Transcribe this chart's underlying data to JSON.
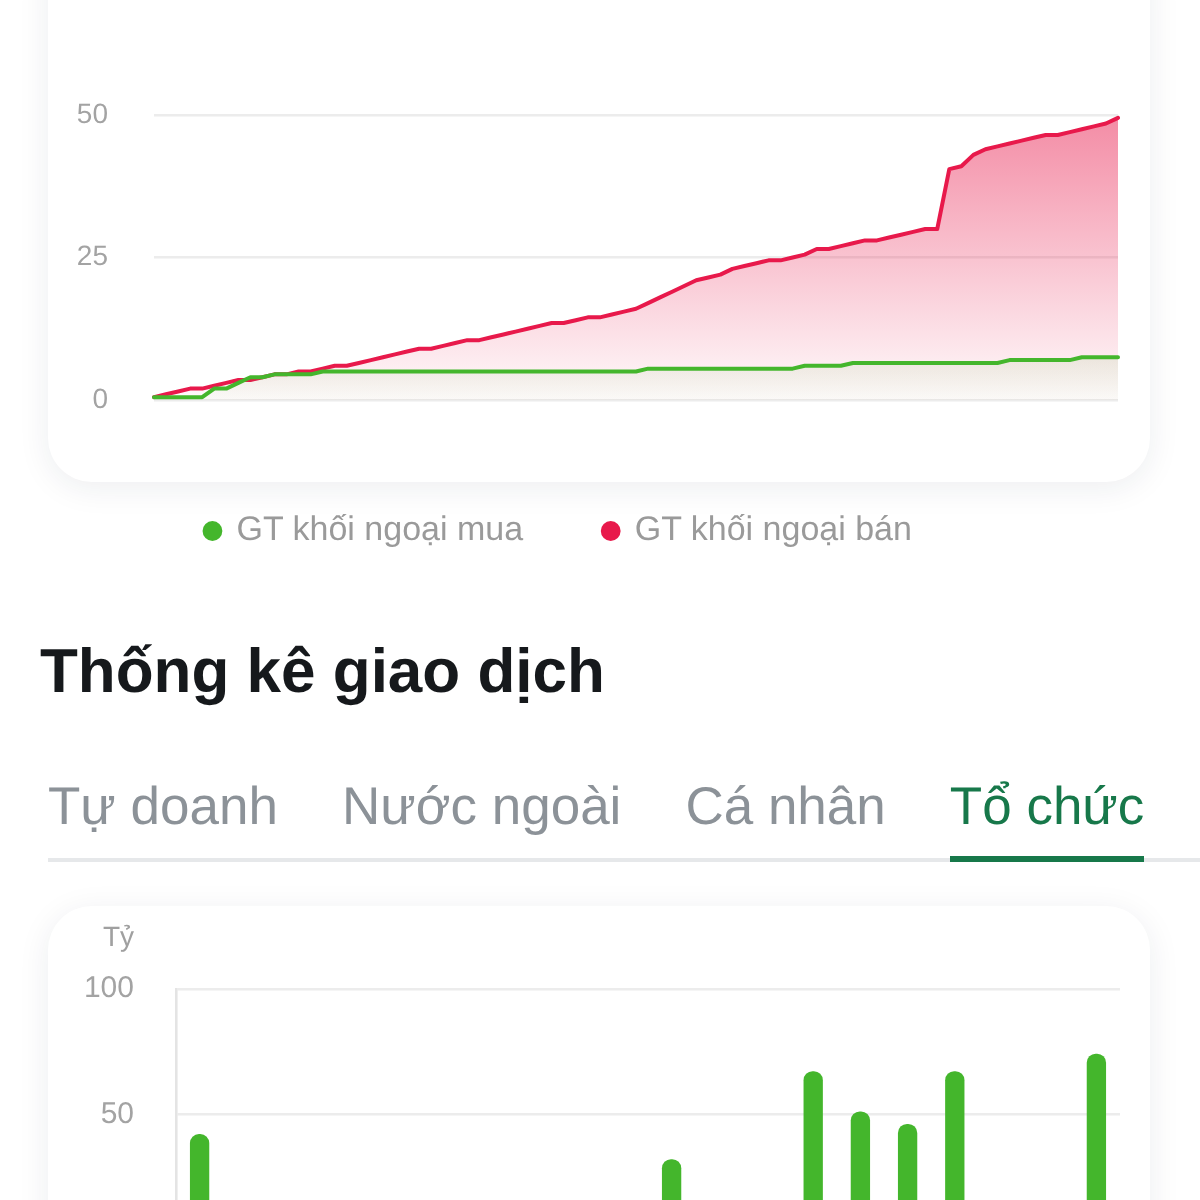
{
  "chart_data": [
    {
      "type": "area",
      "categories": [
        null,
        null,
        null,
        null,
        null,
        null,
        null,
        null,
        null,
        null,
        null,
        null,
        null,
        null,
        null,
        null,
        null,
        null,
        null,
        null,
        null,
        null,
        null,
        null,
        null,
        null,
        null,
        null,
        null,
        null,
        null,
        null,
        null,
        null,
        null,
        null,
        null,
        null,
        null,
        null,
        null,
        null,
        null,
        null,
        null,
        null,
        null,
        null,
        null,
        null,
        null,
        null,
        null,
        null,
        null,
        null,
        null,
        null,
        null,
        null,
        null,
        null,
        null,
        null,
        null,
        null,
        null,
        null,
        null,
        null,
        null,
        null,
        null,
        null,
        null,
        null,
        null,
        null,
        null,
        null,
        null
      ],
      "series": [
        {
          "name": "GT khối ngoại mua",
          "color": "#44b62c",
          "values": [
            0.5,
            0.5,
            0.5,
            0.5,
            0.5,
            2,
            2,
            3,
            4,
            4,
            4.5,
            4.5,
            4.5,
            4.5,
            5,
            5,
            5,
            5,
            5,
            5,
            5,
            5,
            5,
            5,
            5,
            5,
            5,
            5,
            5,
            5,
            5,
            5,
            5,
            5,
            5,
            5,
            5,
            5,
            5,
            5,
            5,
            5.5,
            5.5,
            5.5,
            5.5,
            5.5,
            5.5,
            5.5,
            5.5,
            5.5,
            5.5,
            5.5,
            5.5,
            5.5,
            6,
            6,
            6,
            6,
            6.5,
            6.5,
            6.5,
            6.5,
            6.5,
            6.5,
            6.5,
            6.5,
            6.5,
            6.5,
            6.5,
            6.5,
            6.5,
            7,
            7,
            7,
            7,
            7,
            7,
            7.5,
            7.5,
            7.5,
            7.5
          ]
        },
        {
          "name": "GT khối ngoại bán",
          "color": "#e8194b",
          "values": [
            0.5,
            1,
            1.5,
            2,
            2,
            2.5,
            3,
            3.5,
            3.5,
            4,
            4.5,
            4.5,
            5,
            5,
            5.5,
            6,
            6,
            6.5,
            7,
            7.5,
            8,
            8.5,
            9,
            9,
            9.5,
            10,
            10.5,
            10.5,
            11,
            11.5,
            12,
            12.5,
            13,
            13.5,
            13.5,
            14,
            14.5,
            14.5,
            15,
            15.5,
            16,
            17,
            18,
            19,
            20,
            21,
            21.5,
            22,
            23,
            23.5,
            24,
            24.5,
            24.5,
            25,
            25.5,
            26.5,
            26.5,
            27,
            27.5,
            28,
            28,
            28.5,
            29,
            29.5,
            30,
            30,
            40.5,
            41,
            43,
            44,
            44.5,
            45,
            45.5,
            46,
            46.5,
            46.5,
            47,
            47.5,
            48,
            48.5,
            49.5
          ]
        }
      ],
      "ylim": [
        0,
        50
      ],
      "yticks": [
        0,
        25,
        50
      ],
      "grid": "y",
      "legend": "bottom",
      "tick_labels": "y",
      "marker": "none"
    },
    {
      "type": "bar",
      "title": "Thống kê giao dịch",
      "annotations": [
        "Tự doanh",
        "Nước ngoài",
        "Cá nhân",
        "Tổ chức"
      ],
      "ylabel": "Tỷ",
      "categories": [
        null,
        null,
        null,
        null,
        null,
        null,
        null,
        null,
        null,
        null,
        null,
        null,
        null,
        null,
        null,
        null,
        null,
        null,
        null,
        null
      ],
      "values": [
        42,
        null,
        null,
        null,
        null,
        null,
        null,
        null,
        null,
        null,
        32,
        null,
        null,
        67,
        51,
        46,
        67,
        null,
        null,
        74
      ],
      "color": "#44b62c",
      "ylim": [
        16,
        100
      ],
      "yticks": [
        50,
        100
      ],
      "grid": "y",
      "tick_labels": "y"
    }
  ]
}
